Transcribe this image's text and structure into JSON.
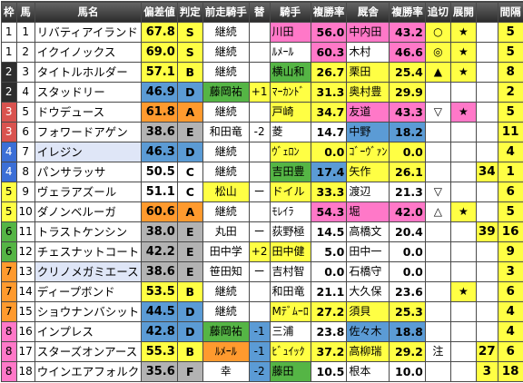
{
  "headers": [
    "枠",
    "馬",
    "馬名",
    "偏差値",
    "判定",
    "前走騎手",
    "替",
    "騎手",
    "複勝率",
    "厩舎",
    "複勝率",
    "追切",
    "展開",
    "",
    "間隔"
  ],
  "colors": {
    "waku": [
      "#ffffff",
      "#ffffff",
      "#2d2d2d",
      "#d9534f",
      "#3c6fd6",
      "#ffff44",
      "#55b545",
      "#ff9a2e",
      "#ff78c8"
    ],
    "waku_text": [
      "#000000",
      "#000000",
      "#ffffff",
      "#ffffff",
      "#ffffff",
      "#000000",
      "#000000",
      "#000000",
      "#000000"
    ]
  },
  "rows": [
    {
      "waku": "1",
      "num": "1",
      "name": "リバティアイランド",
      "name_bg": "#ffffff",
      "dev": "67.8",
      "dev_bg": "#ffff44",
      "rank": "S",
      "rank_bg": "#ffff44",
      "prev_jockey": "継続",
      "prev_bg": "#ffffff",
      "change": "",
      "change_bg": "#ffffff",
      "jockey": "川田",
      "jockey_bg": "#ff78c8",
      "jrate": "56.0",
      "jrate_bg": "#ff78c8",
      "stable": "中内田",
      "stable_bg": "#ff78c8",
      "srate": "43.2",
      "srate_bg": "#ff78c8",
      "chase": "○",
      "chase_bg": "#ffff44",
      "tenkai": "★",
      "tenkai_bg": "#ffff44",
      "fav": "",
      "fav_bg": "#ffffff",
      "interval": "5",
      "interval_bg": "#ffff44"
    },
    {
      "waku": "1",
      "num": "2",
      "name": "イクイノックス",
      "name_bg": "#ffffff",
      "dev": "69.0",
      "dev_bg": "#ffff44",
      "rank": "S",
      "rank_bg": "#ffff44",
      "prev_jockey": "継続",
      "prev_bg": "#ffffff",
      "change": "",
      "change_bg": "#ffffff",
      "jockey": "ﾙﾒｰﾙ",
      "jockey_bg": "#ffffff",
      "jrate": "60.3",
      "jrate_bg": "#ff78c8",
      "stable": "木村",
      "stable_bg": "#ffffff",
      "srate": "46.6",
      "srate_bg": "#ff78c8",
      "chase": "◎",
      "chase_bg": "#ffff44",
      "tenkai": "★",
      "tenkai_bg": "#ffff44",
      "fav": "",
      "fav_bg": "#ffffff",
      "interval": "5",
      "interval_bg": "#ffff44"
    },
    {
      "waku": "2",
      "num": "3",
      "name": "タイトルホルダー",
      "name_bg": "#ffffff",
      "dev": "57.1",
      "dev_bg": "#ffff44",
      "rank": "B",
      "rank_bg": "#ffff44",
      "prev_jockey": "継続",
      "prev_bg": "#ffffff",
      "change": "",
      "change_bg": "#ffffff",
      "jockey": "横山和",
      "jockey_bg": "#55b545",
      "jrate": "26.7",
      "jrate_bg": "#ffff44",
      "stable": "栗田",
      "stable_bg": "#ffff44",
      "srate": "25.4",
      "srate_bg": "#ffff44",
      "chase": "▲",
      "chase_bg": "#ffff44",
      "tenkai": "★",
      "tenkai_bg": "#ffff44",
      "fav": "",
      "fav_bg": "#ffffff",
      "interval": "8",
      "interval_bg": "#ffff44"
    },
    {
      "waku": "2",
      "num": "4",
      "name": "スタッドリー",
      "name_bg": "#ffffff",
      "dev": "46.9",
      "dev_bg": "#5b9bd5",
      "rank": "D",
      "rank_bg": "#5b9bd5",
      "prev_jockey": "藤岡祐",
      "prev_bg": "#55b545",
      "change": "+1",
      "change_bg": "#ffff44",
      "jockey": "ﾏｰｶﾝﾄﾞ",
      "jockey_bg": "#ffff44",
      "jrate": "31.3",
      "jrate_bg": "#ffff44",
      "stable": "奥村豊",
      "stable_bg": "#ffff44",
      "srate": "29.9",
      "srate_bg": "#ffff44",
      "chase": "",
      "chase_bg": "#ffffff",
      "tenkai": "",
      "tenkai_bg": "#ffffff",
      "fav": "",
      "fav_bg": "#ffffff",
      "interval": "2",
      "interval_bg": "#ffff44"
    },
    {
      "waku": "3",
      "num": "5",
      "name": "ドウデュース",
      "name_bg": "#ffffff",
      "dev": "61.8",
      "dev_bg": "#ff9a2e",
      "rank": "A",
      "rank_bg": "#ff9a2e",
      "prev_jockey": "継続",
      "prev_bg": "#ffffff",
      "change": "",
      "change_bg": "#ffffff",
      "jockey": "戸崎",
      "jockey_bg": "#ffff44",
      "jrate": "34.7",
      "jrate_bg": "#ffff44",
      "stable": "友道",
      "stable_bg": "#ff78c8",
      "srate": "43.3",
      "srate_bg": "#ff78c8",
      "chase": "▽",
      "chase_bg": "#ffffff",
      "tenkai": "★",
      "tenkai_bg": "#ff78c8",
      "fav": "",
      "fav_bg": "#ffffff",
      "interval": "5",
      "interval_bg": "#ffff44"
    },
    {
      "waku": "3",
      "num": "6",
      "name": "フォワードアゲン",
      "name_bg": "#ffffff",
      "dev": "38.6",
      "dev_bg": "#b3b3b3",
      "rank": "E",
      "rank_bg": "#b3b3b3",
      "prev_jockey": "和田竜",
      "prev_bg": "#ffffff",
      "change": "-2",
      "change_bg": "#ffffff",
      "jockey": "菱",
      "jockey_bg": "#ffffff",
      "jrate": "14.7",
      "jrate_bg": "#ffffff",
      "stable": "中野",
      "stable_bg": "#5b9bd5",
      "srate": "18.2",
      "srate_bg": "#5b9bd5",
      "chase": "",
      "chase_bg": "#ffffff",
      "tenkai": "",
      "tenkai_bg": "#ffffff",
      "fav": "",
      "fav_bg": "#ffffff",
      "interval": "11",
      "interval_bg": "#ffff44"
    },
    {
      "waku": "4",
      "num": "7",
      "name": "イレジン",
      "name_bg": "#dfe6f7",
      "dev": "46.3",
      "dev_bg": "#5b9bd5",
      "rank": "D",
      "rank_bg": "#5b9bd5",
      "prev_jockey": "継続",
      "prev_bg": "#ffffff",
      "change": "",
      "change_bg": "#ffffff",
      "jockey": "ｳﾞｪﾛﾝ",
      "jockey_bg": "#ffff44",
      "jrate": "0.0",
      "jrate_bg": "#ffff44",
      "stable": "ｺﾞｰｳﾞｧﾝ",
      "stable_bg": "#ffff44",
      "srate": "0.0",
      "srate_bg": "#ffff44",
      "chase": "",
      "chase_bg": "#ffffff",
      "tenkai": "",
      "tenkai_bg": "#ffffff",
      "fav": "",
      "fav_bg": "#ffffff",
      "interval": "4",
      "interval_bg": "#ffff44"
    },
    {
      "waku": "4",
      "num": "8",
      "name": "パンサラッサ",
      "name_bg": "#ffffff",
      "dev": "50.5",
      "dev_bg": "#ffffff",
      "rank": "C",
      "rank_bg": "#ffffff",
      "prev_jockey": "継続",
      "prev_bg": "#ffffff",
      "change": "",
      "change_bg": "#ffffff",
      "jockey": "吉田豊",
      "jockey_bg": "#55b545",
      "jrate": "17.4",
      "jrate_bg": "#5b9bd5",
      "stable": "矢作",
      "stable_bg": "#ffff44",
      "srate": "26.1",
      "srate_bg": "#ffff44",
      "chase": "",
      "chase_bg": "#ffffff",
      "tenkai": "",
      "tenkai_bg": "#ffffff",
      "fav": "34",
      "fav_bg": "#ffff44",
      "interval": "1",
      "interval_bg": "#ffff44"
    },
    {
      "waku": "5",
      "num": "9",
      "name": "ヴェラアズール",
      "name_bg": "#ffffff",
      "dev": "51.1",
      "dev_bg": "#ffffff",
      "rank": "C",
      "rank_bg": "#ffffff",
      "prev_jockey": "松山",
      "prev_bg": "#ffff44",
      "change": "ー",
      "change_bg": "#ffffff",
      "jockey": "ドイル",
      "jockey_bg": "#ffff44",
      "jrate": "33.3",
      "jrate_bg": "#ffff44",
      "stable": "渡辺",
      "stable_bg": "#ffffff",
      "srate": "21.3",
      "srate_bg": "#ffffff",
      "chase": "▽",
      "chase_bg": "#ffffff",
      "tenkai": "",
      "tenkai_bg": "#ffffff",
      "fav": "",
      "fav_bg": "#ffffff",
      "interval": "6",
      "interval_bg": "#ffff44"
    },
    {
      "waku": "5",
      "num": "10",
      "name": "ダノンベルーガ",
      "name_bg": "#ffffff",
      "dev": "60.6",
      "dev_bg": "#ff9a2e",
      "rank": "A",
      "rank_bg": "#ff9a2e",
      "prev_jockey": "継続",
      "prev_bg": "#ffffff",
      "change": "",
      "change_bg": "#ffffff",
      "jockey": "ﾓﾚｲﾗ",
      "jockey_bg": "#ffffff",
      "jrate": "54.3",
      "jrate_bg": "#ff78c8",
      "stable": "堀",
      "stable_bg": "#ff78c8",
      "srate": "42.0",
      "srate_bg": "#ff78c8",
      "chase": "△",
      "chase_bg": "#ffffff",
      "tenkai": "★",
      "tenkai_bg": "#ffff44",
      "fav": "",
      "fav_bg": "#ffffff",
      "interval": "5",
      "interval_bg": "#ffff44"
    },
    {
      "waku": "6",
      "num": "11",
      "name": "トラストケンシン",
      "name_bg": "#ffffff",
      "dev": "38.0",
      "dev_bg": "#b3b3b3",
      "rank": "E",
      "rank_bg": "#b3b3b3",
      "prev_jockey": "丸田",
      "prev_bg": "#ffffff",
      "change": "ー",
      "change_bg": "#ffffff",
      "jockey": "荻野極",
      "jockey_bg": "#ffffff",
      "jrate": "14.5",
      "jrate_bg": "#ffffff",
      "stable": "高橋文",
      "stable_bg": "#ffffff",
      "srate": "20.4",
      "srate_bg": "#ffffff",
      "chase": "",
      "chase_bg": "#ffffff",
      "tenkai": "",
      "tenkai_bg": "#ffffff",
      "fav": "39",
      "fav_bg": "#ffff44",
      "interval": "16",
      "interval_bg": "#ffff44"
    },
    {
      "waku": "6",
      "num": "12",
      "name": "チェスナットコート",
      "name_bg": "#ffffff",
      "dev": "42.2",
      "dev_bg": "#b3b3b3",
      "rank": "E",
      "rank_bg": "#b3b3b3",
      "prev_jockey": "田中学",
      "prev_bg": "#ffffff",
      "change": "+2",
      "change_bg": "#ffff44",
      "jockey": "田中健",
      "jockey_bg": "#ffff44",
      "jrate": "5.0",
      "jrate_bg": "#ffffff",
      "stable": "田中一",
      "stable_bg": "#ffffff",
      "srate": "0.0",
      "srate_bg": "#ffffff",
      "chase": "",
      "chase_bg": "#ffffff",
      "tenkai": "",
      "tenkai_bg": "#ffffff",
      "fav": "",
      "fav_bg": "#ffffff",
      "interval": "9",
      "interval_bg": "#ffff44"
    },
    {
      "waku": "7",
      "num": "13",
      "name": "クリノメガミエース",
      "name_bg": "#dfe6f7",
      "dev": "38.6",
      "dev_bg": "#b3b3b3",
      "rank": "E",
      "rank_bg": "#b3b3b3",
      "prev_jockey": "笹田知",
      "prev_bg": "#ffffff",
      "change": "ー",
      "change_bg": "#ffffff",
      "jockey": "吉村智",
      "jockey_bg": "#ffffff",
      "jrate": "0.0",
      "jrate_bg": "#ffffff",
      "stable": "石橋守",
      "stable_bg": "#ffffff",
      "srate": "0.0",
      "srate_bg": "#ffffff",
      "chase": "",
      "chase_bg": "#ffffff",
      "tenkai": "",
      "tenkai_bg": "#ffffff",
      "fav": "",
      "fav_bg": "#ffffff",
      "interval": "3",
      "interval_bg": "#ffff44"
    },
    {
      "waku": "7",
      "num": "14",
      "name": "ディープボンド",
      "name_bg": "#ffffff",
      "dev": "53.5",
      "dev_bg": "#ffff44",
      "rank": "B",
      "rank_bg": "#ffff44",
      "prev_jockey": "継続",
      "prev_bg": "#ffffff",
      "change": "",
      "change_bg": "#ffffff",
      "jockey": "和田竜",
      "jockey_bg": "#ffffff",
      "jrate": "21.1",
      "jrate_bg": "#ffffff",
      "stable": "大久保",
      "stable_bg": "#ffffff",
      "srate": "23.6",
      "srate_bg": "#ffffff",
      "chase": "",
      "chase_bg": "#ffffff",
      "tenkai": "★",
      "tenkai_bg": "#ffff44",
      "fav": "",
      "fav_bg": "#ffffff",
      "interval": "6",
      "interval_bg": "#ffff44"
    },
    {
      "waku": "7",
      "num": "15",
      "name": "ショウナンバシット",
      "name_bg": "#ffffff",
      "dev": "44.5",
      "dev_bg": "#5b9bd5",
      "rank": "D",
      "rank_bg": "#5b9bd5",
      "prev_jockey": "継続",
      "prev_bg": "#ffffff",
      "change": "",
      "change_bg": "#ffffff",
      "jockey": "Mﾃﾞﾑｰﾛ",
      "jockey_bg": "#ffff44",
      "jrate": "27.2",
      "jrate_bg": "#ffff44",
      "stable": "須貝",
      "stable_bg": "#ffff44",
      "srate": "25.3",
      "srate_bg": "#ffff44",
      "chase": "",
      "chase_bg": "#ffffff",
      "tenkai": "",
      "tenkai_bg": "#ffffff",
      "fav": "",
      "fav_bg": "#ffffff",
      "interval": "4",
      "interval_bg": "#ffff44"
    },
    {
      "waku": "8",
      "num": "16",
      "name": "インプレス",
      "name_bg": "#ffffff",
      "dev": "42.8",
      "dev_bg": "#5b9bd5",
      "rank": "D",
      "rank_bg": "#5b9bd5",
      "prev_jockey": "藤岡祐",
      "prev_bg": "#55b545",
      "change": "-1",
      "change_bg": "#5b9bd5",
      "jockey": "三浦",
      "jockey_bg": "#ffffff",
      "jrate": "23.8",
      "jrate_bg": "#ffffff",
      "stable": "佐々木",
      "stable_bg": "#5b9bd5",
      "srate": "18.8",
      "srate_bg": "#5b9bd5",
      "chase": "",
      "chase_bg": "#ffffff",
      "tenkai": "",
      "tenkai_bg": "#ffffff",
      "fav": "",
      "fav_bg": "#ffffff",
      "interval": "4",
      "interval_bg": "#ffff44"
    },
    {
      "waku": "8",
      "num": "17",
      "name": "スターズオンアース",
      "name_bg": "#ffffff",
      "dev": "55.3",
      "dev_bg": "#ffff44",
      "rank": "B",
      "rank_bg": "#ffff44",
      "prev_jockey": "ﾙﾒｰﾙ",
      "prev_bg": "#ff9a2e",
      "change": "-1",
      "change_bg": "#5b9bd5",
      "jockey": "ﾋﾞｭｲｯｸ",
      "jockey_bg": "#ffff44",
      "jrate": "37.2",
      "jrate_bg": "#ffff44",
      "stable": "高柳瑞",
      "stable_bg": "#ffff44",
      "srate": "29.2",
      "srate_bg": "#ffff44",
      "chase": "注",
      "chase_bg": "#ffffff",
      "tenkai": "",
      "tenkai_bg": "#ffffff",
      "fav": "27",
      "fav_bg": "#ffff44",
      "interval": "6",
      "interval_bg": "#ffff44"
    },
    {
      "waku": "8",
      "num": "18",
      "name": "ウインエアフォルク",
      "name_bg": "#ffffff",
      "dev": "35.6",
      "dev_bg": "#b3b3b3",
      "rank": "F",
      "rank_bg": "#b3b3b3",
      "prev_jockey": "幸",
      "prev_bg": "#ffffff",
      "change": "-2",
      "change_bg": "#5b9bd5",
      "jockey": "藤田",
      "jockey_bg": "#55b545",
      "jrate": "10.5",
      "jrate_bg": "#ffffff",
      "stable": "根本",
      "stable_bg": "#ffffff",
      "srate": "10.0",
      "srate_bg": "#ffffff",
      "chase": "",
      "chase_bg": "#ffffff",
      "tenkai": "",
      "tenkai_bg": "#ffffff",
      "fav": "3",
      "fav_bg": "#ffff44",
      "interval": "18",
      "interval_bg": "#ffff44"
    }
  ]
}
